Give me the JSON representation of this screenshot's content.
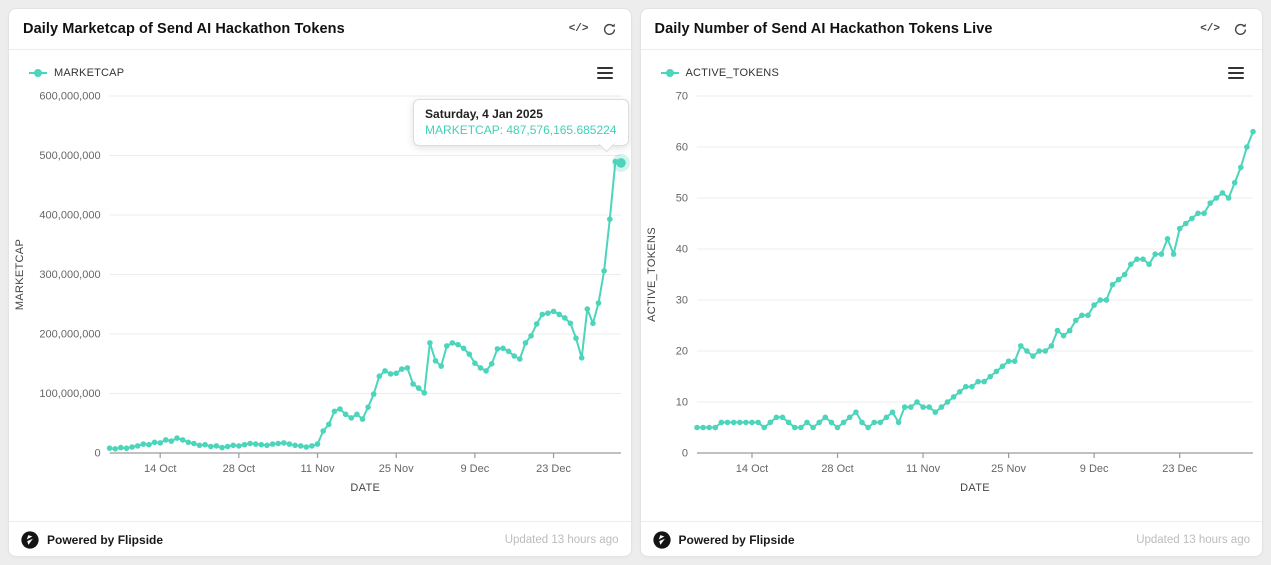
{
  "colors": {
    "accent": "#4cd5bb",
    "tooltip_value": "#41d1b6",
    "background": "#ededed",
    "grid": "#ececec",
    "axis": "#9a9a9a"
  },
  "icons": {
    "code": "</>",
    "refresh": "refresh-arrows",
    "menu": "hamburger",
    "logo": "flipside-mark"
  },
  "panels": [
    {
      "title": "Daily Marketcap of Send AI Hackathon Tokens",
      "legend": "MARKETCAP",
      "footer": {
        "powered_by": "Powered by Flipside",
        "updated": "Updated 13 hours ago"
      }
    },
    {
      "title": "Daily Number of Send AI Hackathon Tokens Live",
      "legend": "ACTIVE_TOKENS",
      "footer": {
        "powered_by": "Powered by Flipside",
        "updated": "Updated 13 hours ago"
      }
    }
  ],
  "chart_data": [
    {
      "type": "line",
      "title": "Daily Marketcap of Send AI Hackathon Tokens",
      "series_name": "MARKETCAP",
      "xlabel": "DATE",
      "ylabel": "MARKETCAP",
      "ylim": [
        0,
        600000000
      ],
      "yticks": [
        0,
        100000000,
        200000000,
        300000000,
        400000000,
        500000000,
        600000000
      ],
      "xticklabels": [
        "14 Oct",
        "28 Oct",
        "11 Nov",
        "25 Nov",
        "9 Dec",
        "23 Dec"
      ],
      "grid": "horizontal",
      "legend_position": "top-left",
      "line_color": "#4cd5bb",
      "x": [
        "5 Oct",
        "6 Oct",
        "7 Oct",
        "8 Oct",
        "9 Oct",
        "10 Oct",
        "11 Oct",
        "12 Oct",
        "13 Oct",
        "14 Oct",
        "15 Oct",
        "16 Oct",
        "17 Oct",
        "18 Oct",
        "19 Oct",
        "20 Oct",
        "21 Oct",
        "22 Oct",
        "23 Oct",
        "24 Oct",
        "25 Oct",
        "26 Oct",
        "27 Oct",
        "28 Oct",
        "29 Oct",
        "30 Oct",
        "31 Oct",
        "1 Nov",
        "2 Nov",
        "3 Nov",
        "4 Nov",
        "5 Nov",
        "6 Nov",
        "7 Nov",
        "8 Nov",
        "9 Nov",
        "10 Nov",
        "11 Nov",
        "12 Nov",
        "13 Nov",
        "14 Nov",
        "15 Nov",
        "16 Nov",
        "17 Nov",
        "18 Nov",
        "19 Nov",
        "20 Nov",
        "21 Nov",
        "22 Nov",
        "23 Nov",
        "24 Nov",
        "25 Nov",
        "26 Nov",
        "27 Nov",
        "28 Nov",
        "29 Nov",
        "30 Nov",
        "1 Dec",
        "2 Dec",
        "3 Dec",
        "4 Dec",
        "5 Dec",
        "6 Dec",
        "7 Dec",
        "8 Dec",
        "9 Dec",
        "10 Dec",
        "11 Dec",
        "12 Dec",
        "13 Dec",
        "14 Dec",
        "15 Dec",
        "16 Dec",
        "17 Dec",
        "18 Dec",
        "19 Dec",
        "20 Dec",
        "21 Dec",
        "22 Dec",
        "23 Dec",
        "24 Dec",
        "25 Dec",
        "26 Dec",
        "27 Dec",
        "28 Dec",
        "29 Dec",
        "30 Dec",
        "31 Dec",
        "1 Jan",
        "2 Jan",
        "3 Jan",
        "4 Jan"
      ],
      "values": [
        8000000,
        7000000,
        9000000,
        8000000,
        10000000,
        12000000,
        15000000,
        14000000,
        18000000,
        17000000,
        22000000,
        20000000,
        25000000,
        22000000,
        18000000,
        16000000,
        13000000,
        14000000,
        11000000,
        12000000,
        9000000,
        11000000,
        13000000,
        12000000,
        14000000,
        16000000,
        15000000,
        14000000,
        13000000,
        15000000,
        16000000,
        17000000,
        15000000,
        13000000,
        12000000,
        10000000,
        12000000,
        15000000,
        37000000,
        48000000,
        70000000,
        74000000,
        65000000,
        59000000,
        65000000,
        57000000,
        77000000,
        99000000,
        129000000,
        138000000,
        133000000,
        134000000,
        141000000,
        143000000,
        116000000,
        109000000,
        101000000,
        185000000,
        155000000,
        146000000,
        180000000,
        185000000,
        182000000,
        176000000,
        166000000,
        151000000,
        143000000,
        138000000,
        150000000,
        175000000,
        176000000,
        171000000,
        163000000,
        158000000,
        185000000,
        197000000,
        217000000,
        233000000,
        235000000,
        238000000,
        233000000,
        227000000,
        218000000,
        193000000,
        160000000,
        242000000,
        218000000,
        252000000,
        306000000,
        393000000,
        490000000,
        487576165.685224
      ],
      "highlight_index": 91,
      "tooltip": {
        "date": "Saturday, 4 Jan 2025",
        "value_line": "MARKETCAP: 487,576,165.685224"
      }
    },
    {
      "type": "line",
      "title": "Daily Number of Send AI Hackathon Tokens Live",
      "series_name": "ACTIVE_TOKENS",
      "xlabel": "DATE",
      "ylabel": "ACTIVE_TOKENS",
      "ylim": [
        0,
        70
      ],
      "yticks": [
        0,
        10,
        20,
        30,
        40,
        50,
        60,
        70
      ],
      "xticklabels": [
        "14 Oct",
        "28 Oct",
        "11 Nov",
        "25 Nov",
        "9 Dec",
        "23 Dec"
      ],
      "grid": "horizontal",
      "legend_position": "top-left",
      "line_color": "#4cd5bb",
      "x": [
        "5 Oct",
        "6 Oct",
        "7 Oct",
        "8 Oct",
        "9 Oct",
        "10 Oct",
        "11 Oct",
        "12 Oct",
        "13 Oct",
        "14 Oct",
        "15 Oct",
        "16 Oct",
        "17 Oct",
        "18 Oct",
        "19 Oct",
        "20 Oct",
        "21 Oct",
        "22 Oct",
        "23 Oct",
        "24 Oct",
        "25 Oct",
        "26 Oct",
        "27 Oct",
        "28 Oct",
        "29 Oct",
        "30 Oct",
        "31 Oct",
        "1 Nov",
        "2 Nov",
        "3 Nov",
        "4 Nov",
        "5 Nov",
        "6 Nov",
        "7 Nov",
        "8 Nov",
        "9 Nov",
        "10 Nov",
        "11 Nov",
        "12 Nov",
        "13 Nov",
        "14 Nov",
        "15 Nov",
        "16 Nov",
        "17 Nov",
        "18 Nov",
        "19 Nov",
        "20 Nov",
        "21 Nov",
        "22 Nov",
        "23 Nov",
        "24 Nov",
        "25 Nov",
        "26 Nov",
        "27 Nov",
        "28 Nov",
        "29 Nov",
        "30 Nov",
        "1 Dec",
        "2 Dec",
        "3 Dec",
        "4 Dec",
        "5 Dec",
        "6 Dec",
        "7 Dec",
        "8 Dec",
        "9 Dec",
        "10 Dec",
        "11 Dec",
        "12 Dec",
        "13 Dec",
        "14 Dec",
        "15 Dec",
        "16 Dec",
        "17 Dec",
        "18 Dec",
        "19 Dec",
        "20 Dec",
        "21 Dec",
        "22 Dec",
        "23 Dec",
        "24 Dec",
        "25 Dec",
        "26 Dec",
        "27 Dec",
        "28 Dec",
        "29 Dec",
        "30 Dec",
        "31 Dec",
        "1 Jan",
        "2 Jan",
        "3 Jan",
        "4 Jan"
      ],
      "values": [
        5,
        5,
        5,
        5,
        6,
        6,
        6,
        6,
        6,
        6,
        6,
        5,
        6,
        7,
        7,
        6,
        5,
        5,
        6,
        5,
        6,
        7,
        6,
        5,
        6,
        7,
        8,
        6,
        5,
        6,
        6,
        7,
        8,
        6,
        9,
        9,
        10,
        9,
        9,
        8,
        9,
        10,
        11,
        12,
        13,
        13,
        14,
        14,
        15,
        16,
        17,
        18,
        18,
        21,
        20,
        19,
        20,
        20,
        21,
        24,
        23,
        24,
        26,
        27,
        27,
        29,
        30,
        30,
        33,
        34,
        35,
        37,
        38,
        38,
        37,
        39,
        39,
        42,
        39,
        44,
        45,
        46,
        47,
        47,
        49,
        50,
        51,
        50,
        53,
        56,
        60,
        63
      ],
      "highlight_index": null
    }
  ]
}
